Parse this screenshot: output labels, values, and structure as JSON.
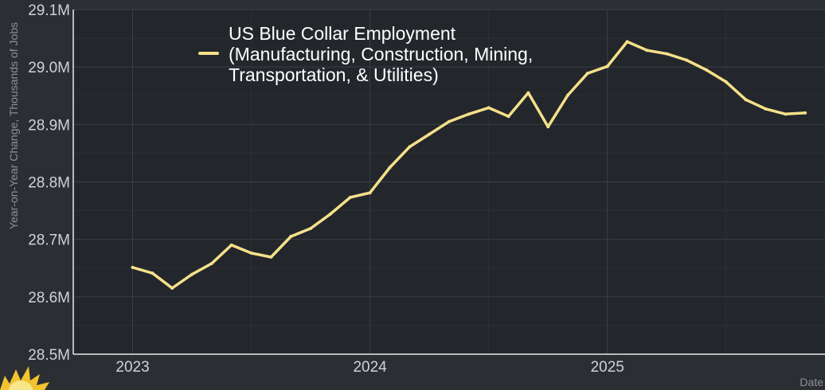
{
  "chart_data": {
    "type": "line",
    "ylabel": "Year-on-Year Change, Thousands of Jobs",
    "xlabel": "Date",
    "y_tick_labels": [
      "28.5M",
      "28.6M",
      "28.7M",
      "28.8M",
      "28.9M",
      "29.0M",
      "29.1M"
    ],
    "y_ticks": [
      28.5,
      28.6,
      28.7,
      28.8,
      28.9,
      29.0,
      29.1
    ],
    "ylim": [
      28.5,
      29.1
    ],
    "x_tick_labels": [
      "2023",
      "2024",
      "2025"
    ],
    "x_ticks": [
      "2023-01",
      "2024-01",
      "2025-01"
    ],
    "xlim": [
      "2022-10",
      "2025-12"
    ],
    "grid": true,
    "legend_position": "top-left",
    "colors": {
      "background": "#2b2e33",
      "plot_background": "#23262b",
      "grid": "#3c4046",
      "axis": "#e8e8e8",
      "line": "#f5e08a"
    },
    "series": [
      {
        "name": "US Blue Collar Employment (Manufacturing, Construction, Mining, Transportation, & Utilities)",
        "legend_lines": [
          "US Blue Collar Employment",
          "(Manufacturing, Construction, Mining,",
          "Transportation, & Utilities)"
        ],
        "color": "#f5e08a",
        "x": [
          "2023-01",
          "2023-02",
          "2023-03",
          "2023-04",
          "2023-05",
          "2023-06",
          "2023-07",
          "2023-08",
          "2023-09",
          "2023-10",
          "2023-11",
          "2023-12",
          "2024-01",
          "2024-02",
          "2024-03",
          "2024-04",
          "2024-05",
          "2024-06",
          "2024-07",
          "2024-08",
          "2024-09",
          "2024-10",
          "2024-11",
          "2024-12",
          "2025-01",
          "2025-02",
          "2025-03",
          "2025-04",
          "2025-05",
          "2025-06",
          "2025-07",
          "2025-08",
          "2025-09",
          "2025-10",
          "2025-11"
        ],
        "values": [
          28.651,
          28.641,
          28.615,
          28.639,
          28.658,
          28.69,
          28.676,
          28.669,
          28.705,
          28.719,
          28.744,
          28.773,
          28.781,
          28.825,
          28.861,
          28.883,
          28.905,
          28.918,
          28.929,
          28.914,
          28.955,
          28.896,
          28.951,
          28.989,
          29.001,
          29.044,
          29.029,
          29.023,
          29.012,
          28.995,
          28.974,
          28.943,
          28.927,
          28.918,
          28.92
        ]
      }
    ]
  }
}
